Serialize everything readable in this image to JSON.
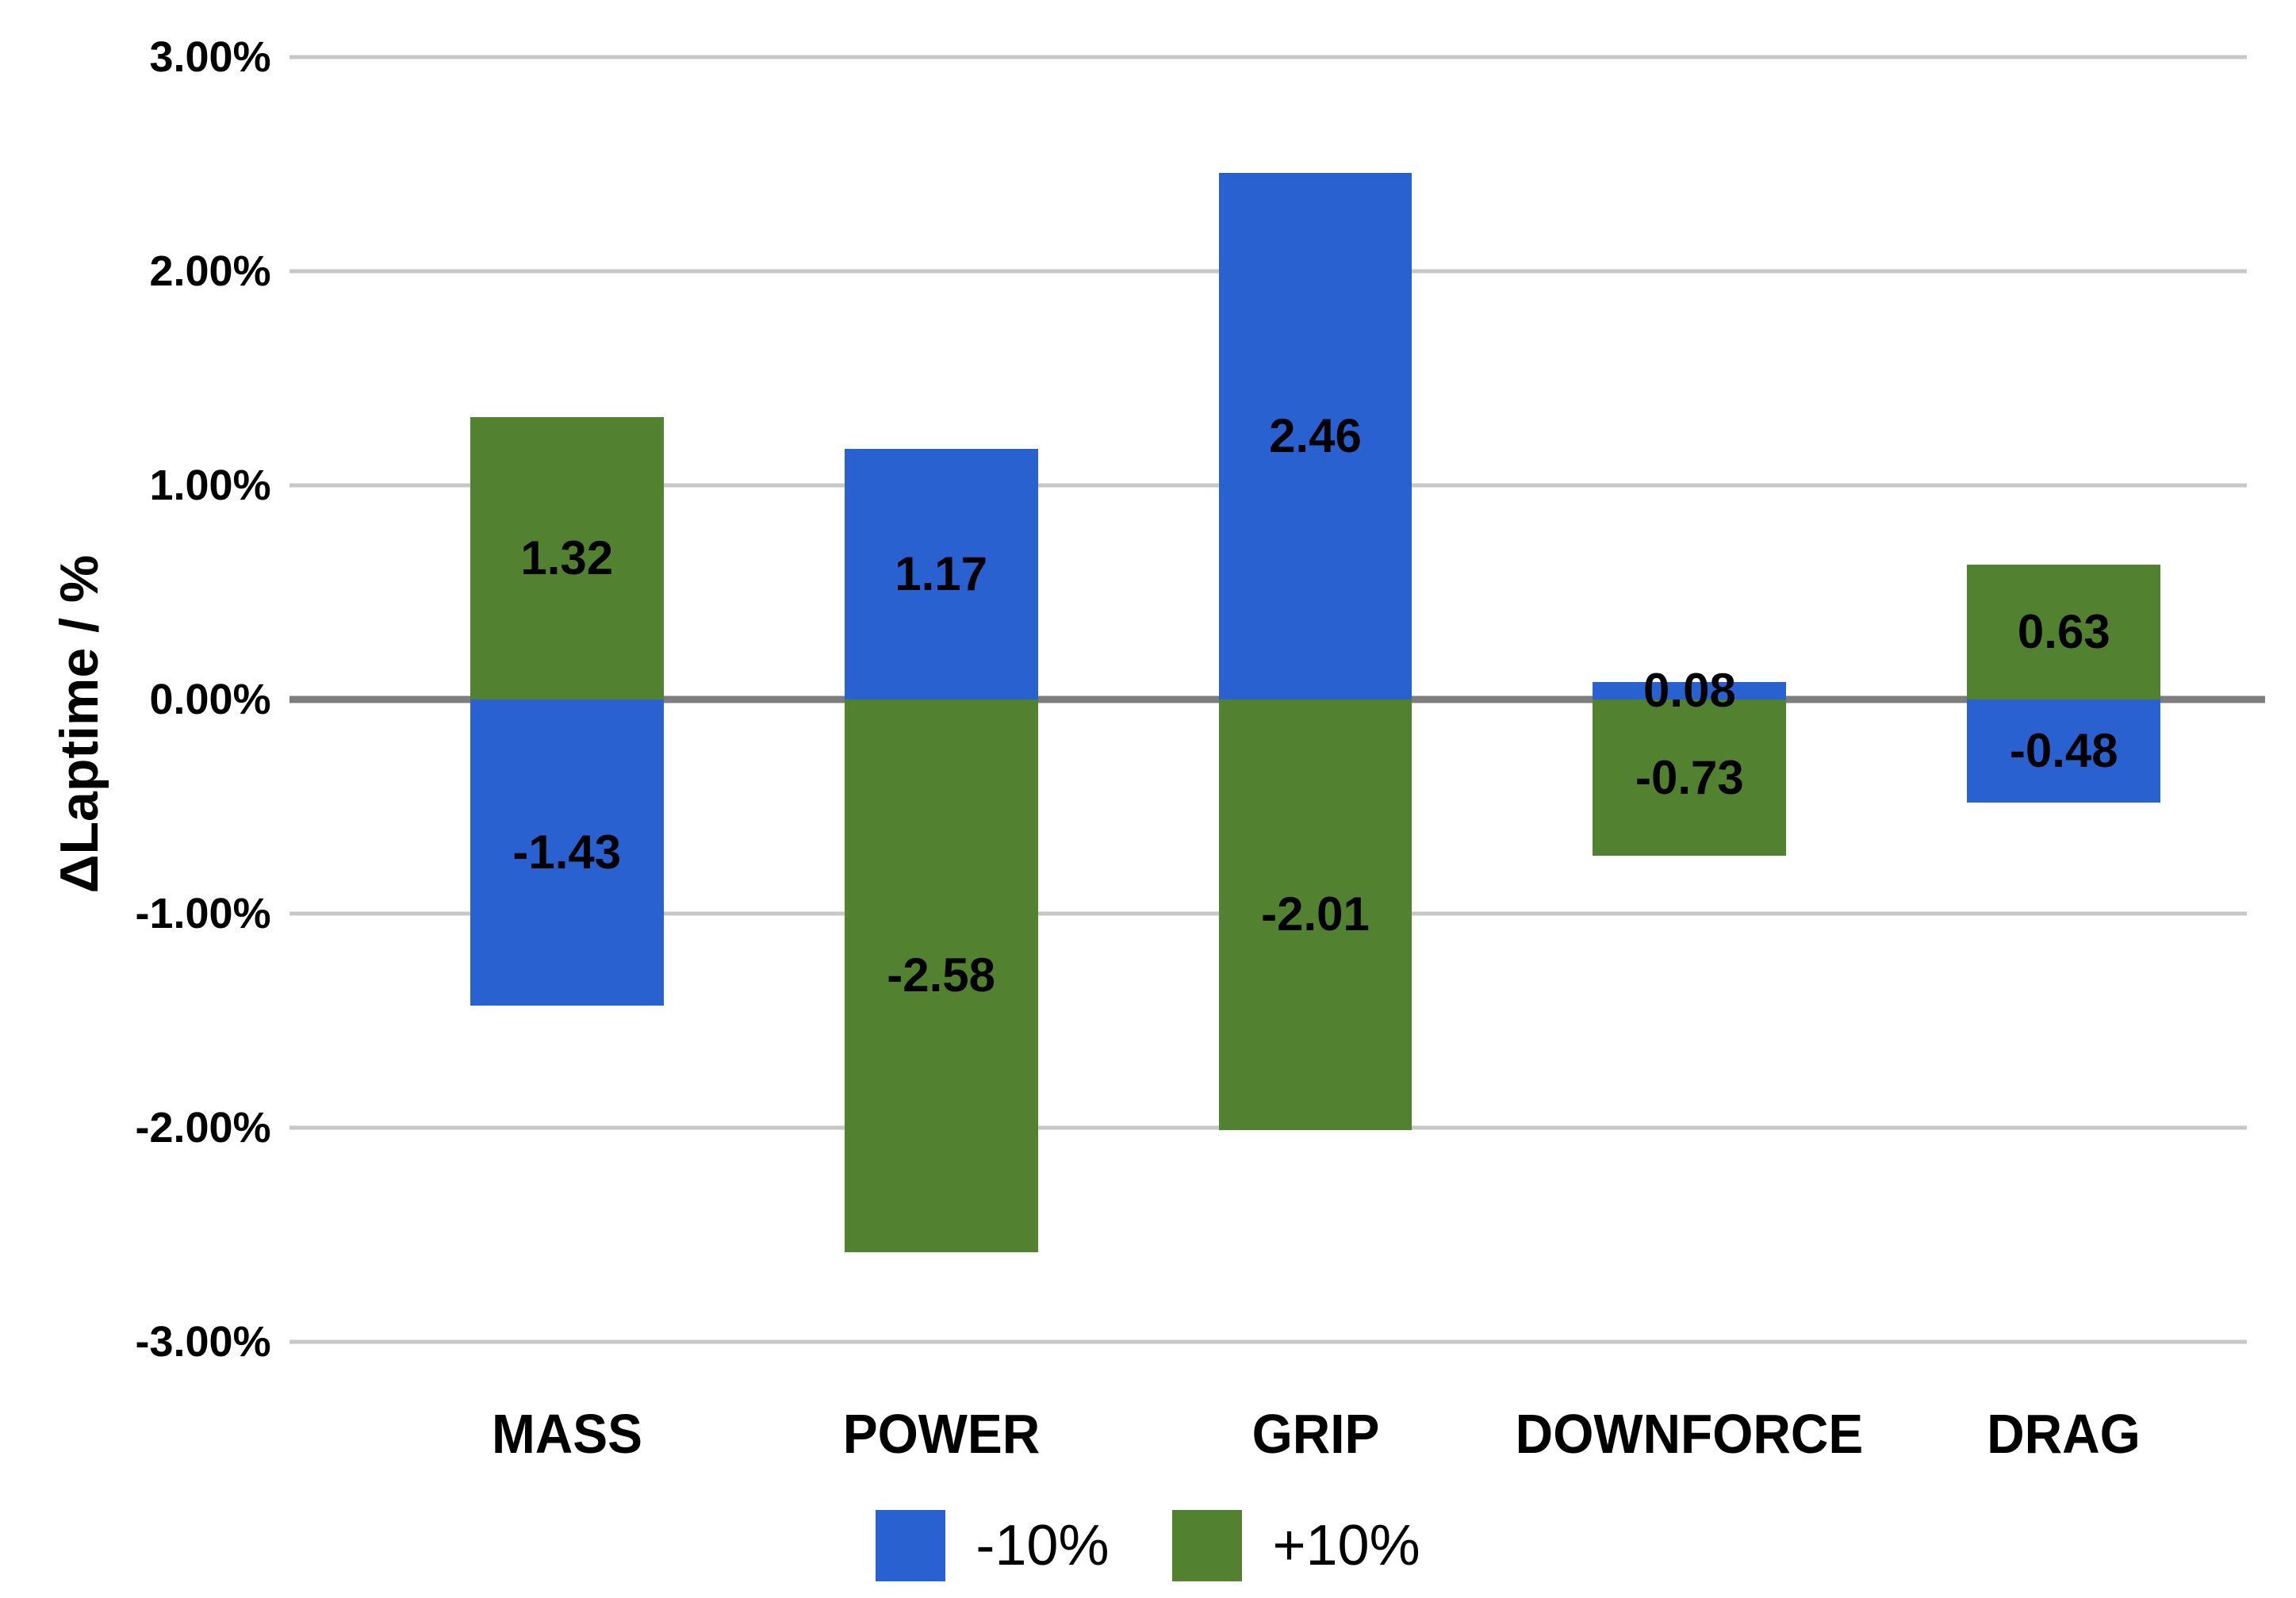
{
  "chart_data": {
    "type": "bar",
    "ylabel": "ΔLaptime / %",
    "categories": [
      "MASS",
      "POWER",
      "GRIP",
      "DOWNFORCE",
      "DRAG"
    ],
    "series": [
      {
        "name": "-10%",
        "color": "#2A61D0",
        "values": [
          -1.43,
          1.17,
          2.46,
          0.08,
          -0.48
        ],
        "labels": [
          "-1.43",
          "1.17",
          "2.46",
          "0.08",
          "-0.48"
        ]
      },
      {
        "name": "+10%",
        "color": "#52812F",
        "values": [
          1.32,
          -2.58,
          -2.01,
          -0.73,
          0.63
        ],
        "labels": [
          "1.32",
          "-2.58",
          "-2.01",
          "-0.73",
          "0.63"
        ]
      }
    ],
    "y_ticks": [
      {
        "value": 3,
        "label": "3.00%"
      },
      {
        "value": 2,
        "label": "2.00%"
      },
      {
        "value": 1,
        "label": "1.00%"
      },
      {
        "value": 0,
        "label": "0.00%"
      },
      {
        "value": -1,
        "label": "-1.00%"
      },
      {
        "value": -2,
        "label": "-2.00%"
      },
      {
        "value": -3,
        "label": "-3.00%"
      }
    ],
    "ylim": [
      -3,
      3
    ],
    "grid": true,
    "legend_position": "bottom",
    "colors": {
      "gridline": "#c7c7c7",
      "zero_line": "#7d7d7d",
      "label_text": "#000000",
      "background": "#ffffff"
    }
  }
}
